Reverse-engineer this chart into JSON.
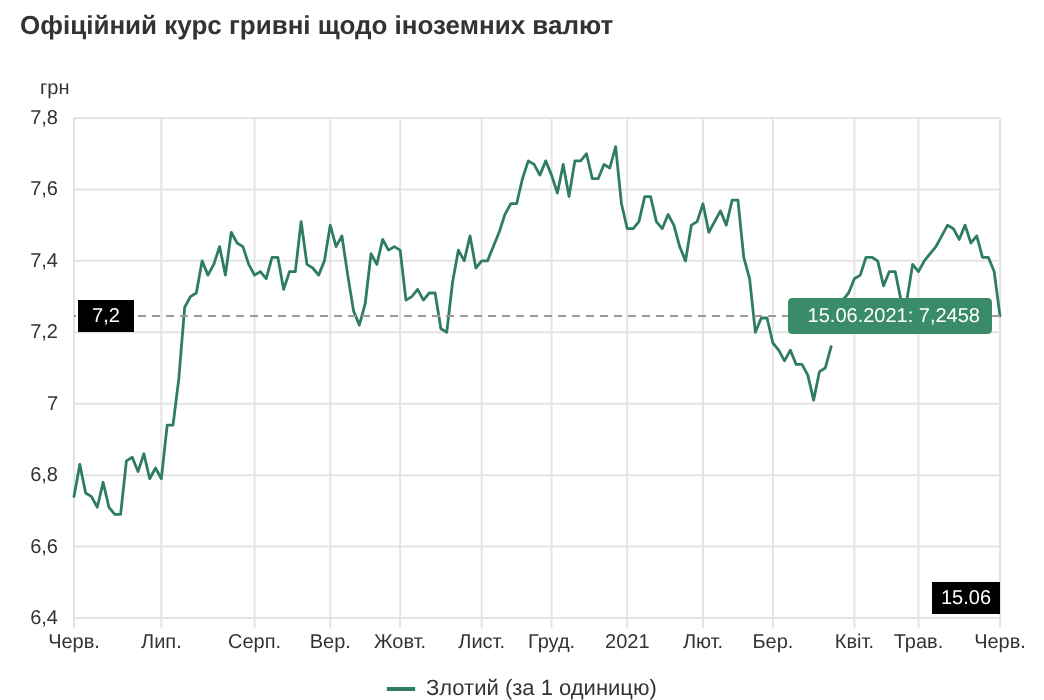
{
  "chart_data": {
    "type": "line",
    "title": "Офіційний курс гривні щодо іноземних валют",
    "ylabel": "грн",
    "categories": [
      "Черв.",
      null,
      null,
      null,
      null,
      null,
      null,
      null,
      null,
      null,
      null,
      null,
      null,
      null,
      null,
      "Лип.",
      null,
      null,
      null,
      null,
      null,
      null,
      null,
      null,
      null,
      null,
      null,
      null,
      null,
      null,
      null,
      "Серп.",
      null,
      null,
      null,
      null,
      null,
      null,
      null,
      null,
      null,
      null,
      null,
      null,
      "Вер.",
      null,
      null,
      null,
      null,
      null,
      null,
      null,
      null,
      null,
      null,
      null,
      "Жовт.",
      null,
      null,
      null,
      null,
      null,
      null,
      null,
      null,
      null,
      null,
      null,
      null,
      null,
      "Лист.",
      null,
      null,
      null,
      null,
      null,
      null,
      null,
      null,
      null,
      null,
      null,
      "Груд.",
      null,
      null,
      null,
      null,
      null,
      null,
      null,
      null,
      null,
      null,
      null,
      null,
      "2021",
      null,
      null,
      null,
      null,
      null,
      null,
      null,
      null,
      null,
      null,
      null,
      null,
      "Лют.",
      null,
      null,
      null,
      null,
      null,
      null,
      null,
      null,
      null,
      null,
      null,
      "Бер.",
      null,
      null,
      null,
      null,
      null,
      null,
      null,
      null,
      null,
      null,
      null,
      null,
      null,
      "Квіт.",
      null,
      null,
      null,
      null,
      null,
      null,
      null,
      null,
      null,
      null,
      "Трав.",
      null,
      null,
      null,
      null,
      null,
      null,
      null,
      null,
      null,
      null,
      null,
      null,
      null,
      "Черв."
    ],
    "series": [
      {
        "name": "Злотий (за 1 одиницю)",
        "color": "#2e7d5f",
        "values": [
          6.74,
          6.83,
          6.75,
          6.74,
          6.71,
          6.78,
          6.71,
          6.69,
          6.69,
          6.84,
          6.85,
          6.81,
          6.86,
          6.79,
          6.82,
          6.79,
          6.94,
          6.94,
          7.07,
          7.27,
          7.3,
          7.31,
          7.4,
          7.36,
          7.39,
          7.44,
          7.36,
          7.48,
          7.45,
          7.44,
          7.39,
          7.36,
          7.37,
          7.35,
          7.41,
          7.41,
          7.32,
          7.37,
          7.37,
          7.51,
          7.39,
          7.38,
          7.36,
          7.4,
          7.5,
          7.44,
          7.47,
          7.36,
          7.26,
          7.22,
          7.28,
          7.42,
          7.39,
          7.46,
          7.43,
          7.44,
          7.43,
          7.29,
          7.3,
          7.32,
          7.29,
          7.31,
          7.31,
          7.21,
          7.2,
          7.34,
          7.43,
          7.4,
          7.47,
          7.38,
          7.4,
          7.4,
          7.44,
          7.48,
          7.53,
          7.56,
          7.56,
          7.63,
          7.68,
          7.67,
          7.64,
          7.68,
          7.64,
          7.59,
          7.67,
          7.58,
          7.68,
          7.68,
          7.7,
          7.63,
          7.63,
          7.67,
          7.66,
          7.72,
          7.56,
          7.49,
          7.49,
          7.51,
          7.58,
          7.58,
          7.51,
          7.49,
          7.53,
          7.5,
          7.44,
          7.4,
          7.5,
          7.51,
          7.56,
          7.48,
          7.51,
          7.54,
          7.5,
          7.57,
          7.57,
          7.41,
          7.35,
          7.2,
          7.24,
          7.24,
          7.17,
          7.15,
          7.12,
          7.15,
          7.11,
          7.11,
          7.08,
          7.01,
          7.09,
          7.1,
          7.16,
          null,
          7.29,
          7.31,
          7.35,
          7.36,
          7.41,
          7.41,
          7.4,
          7.33,
          7.37,
          7.37,
          7.29,
          7.29,
          7.39,
          7.37,
          7.4,
          7.42,
          7.44,
          7.47,
          7.5,
          7.49,
          7.46,
          7.5,
          7.45,
          7.47,
          7.41,
          7.41,
          7.37,
          7.2458
        ]
      }
    ],
    "ylim": [
      6.4,
      7.8
    ],
    "yticks": [
      {
        "value": 6.4,
        "label": "6,4"
      },
      {
        "value": 6.6,
        "label": "6,6"
      },
      {
        "value": 6.8,
        "label": "6,8"
      },
      7,
      {
        "value": 7.2,
        "label": "7,2"
      },
      {
        "value": 7.4,
        "label": "7,4"
      },
      {
        "value": 7.6,
        "label": "7,6"
      },
      {
        "value": 7.8,
        "label": "7,8"
      }
    ],
    "ref_lines": [
      {
        "axis": "y",
        "value": 7.2458,
        "label": "7,2",
        "line_style": "dashed"
      }
    ],
    "annotations": [
      "15.06.2021: 7,2458",
      "15.06"
    ],
    "grid": true,
    "legend": "bottom",
    "marker": "none",
    "line_style": "solid"
  }
}
